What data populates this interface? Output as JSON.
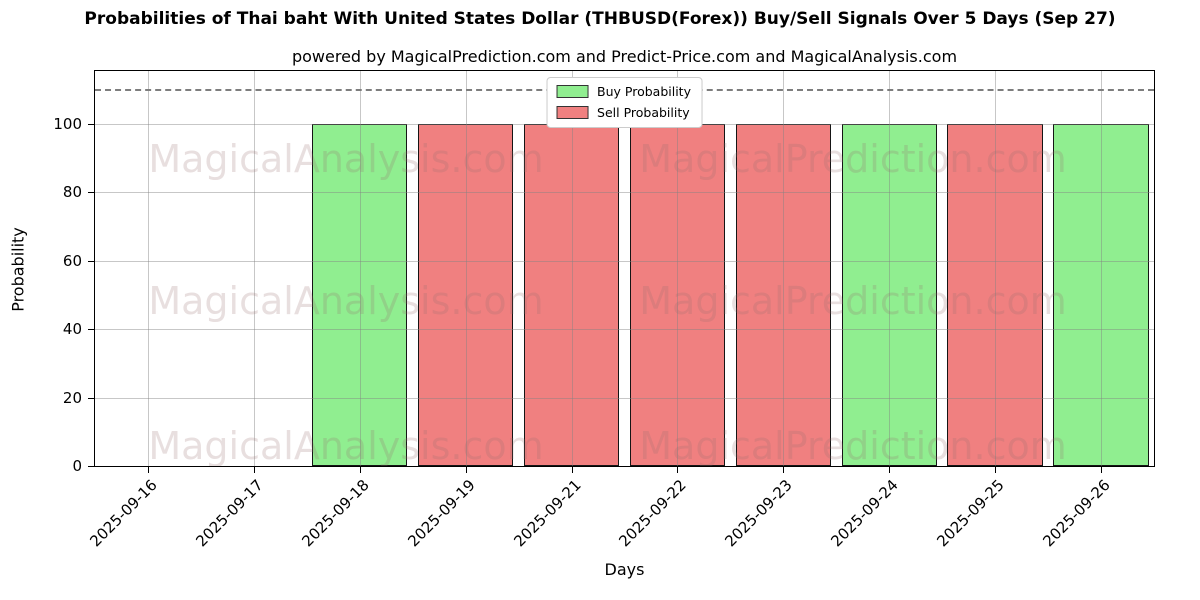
{
  "chart_data": {
    "type": "bar",
    "title": "Probabilities of Thai baht With United States Dollar (THBUSD(Forex)) Buy/Sell Signals Over 5 Days (Sep 27)",
    "subtitle": "powered by MagicalPrediction.com and Predict-Price.com and MagicalAnalysis.com",
    "xlabel": "Days",
    "ylabel": "Probability",
    "categories": [
      "2025-09-16",
      "2025-09-17",
      "2025-09-18",
      "2025-09-19",
      "2025-09-21",
      "2025-09-22",
      "2025-09-23",
      "2025-09-24",
      "2025-09-25",
      "2025-09-26"
    ],
    "series": [
      {
        "name": "Buy Probability",
        "color": "#90EE90",
        "values": [
          null,
          null,
          100,
          null,
          null,
          null,
          null,
          100,
          null,
          100
        ]
      },
      {
        "name": "Sell Probability",
        "color": "#F08080",
        "values": [
          null,
          null,
          null,
          100,
          100,
          100,
          100,
          null,
          100,
          null
        ]
      }
    ],
    "ylim": [
      0,
      115.4
    ],
    "yticks": [
      0,
      20,
      40,
      60,
      80,
      100
    ],
    "threshold_line_y": 110,
    "grid": true,
    "legend_position": "upper center",
    "bar_edge_color": "#151515",
    "watermarks": [
      "MagicalAnalysis.com",
      "MagicalPrediction.com"
    ]
  }
}
